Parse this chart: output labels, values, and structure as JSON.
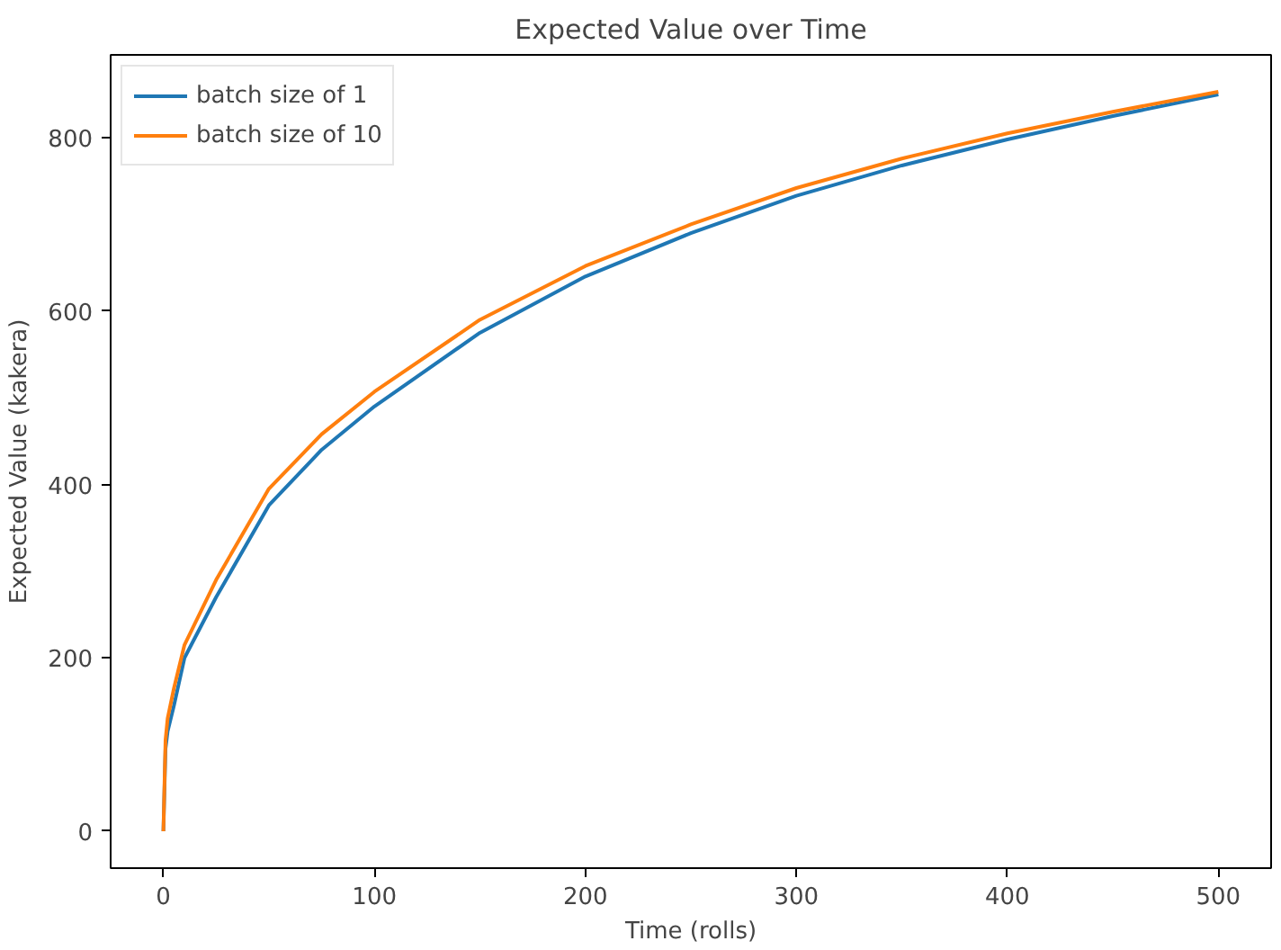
{
  "chart_data": {
    "type": "line",
    "title": "Expected Value over Time",
    "xlabel": "Time (rolls)",
    "ylabel": "Expected Value (kakera)",
    "x": [
      0,
      1,
      2,
      5,
      10,
      25,
      50,
      75,
      100,
      150,
      200,
      250,
      300,
      350,
      400,
      450,
      500
    ],
    "series": [
      {
        "name": "batch size of 1",
        "color": "#1f77b4",
        "values": [
          0,
          95,
          115,
          145,
          200,
          270,
          376,
          440,
          490,
          575,
          640,
          690,
          733,
          768,
          798,
          825,
          850
        ]
      },
      {
        "name": "batch size of 10",
        "color": "#ff7f0e",
        "values": [
          0,
          105,
          130,
          165,
          215,
          290,
          395,
          458,
          507,
          590,
          652,
          700,
          742,
          776,
          805,
          830,
          853
        ]
      }
    ],
    "xlim": [
      -25,
      525
    ],
    "ylim": [
      -42.6,
      895.6
    ],
    "xticks": [
      0,
      100,
      200,
      300,
      400,
      500
    ],
    "yticks": [
      0,
      200,
      400,
      600,
      800
    ],
    "legend": "top left",
    "grid": false
  }
}
